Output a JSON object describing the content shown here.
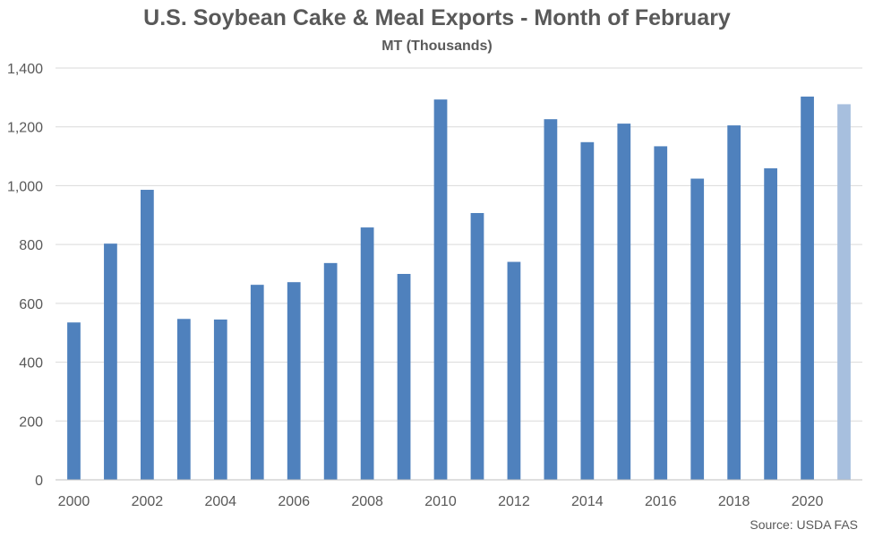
{
  "chart_data": {
    "type": "bar",
    "title": "U.S. Soybean Cake & Meal Exports - Month of February",
    "subtitle": "MT (Thousands)",
    "xlabel": "",
    "ylabel": "",
    "categories": [
      "2000",
      "2001",
      "2002",
      "2003",
      "2004",
      "2005",
      "2006",
      "2007",
      "2008",
      "2009",
      "2010",
      "2011",
      "2012",
      "2013",
      "2014",
      "2015",
      "2016",
      "2017",
      "2018",
      "2019",
      "2020",
      "2021"
    ],
    "x_tick_labels": [
      "2000",
      "2002",
      "2004",
      "2006",
      "2008",
      "2010",
      "2012",
      "2014",
      "2016",
      "2018",
      "2020"
    ],
    "y_tick_labels": [
      "0",
      "200",
      "400",
      "600",
      "800",
      "1,000",
      "1,200",
      "1,400"
    ],
    "series": [
      {
        "values": [
          535,
          803,
          986,
          547,
          545,
          663,
          672,
          737,
          858,
          700,
          1293,
          907,
          741,
          1226,
          1148,
          1211,
          1134,
          1024,
          1205,
          1059,
          1303,
          1277
        ]
      }
    ],
    "ylim": [
      0,
      1400
    ],
    "y_step": 200,
    "grid": true,
    "legend": "none",
    "source": "Source: USDA FAS",
    "colors": {
      "bar": "#4f81bd",
      "bar_highlight": "#a7bfde",
      "grid": "#d9d9d9",
      "axis": "#bfbfbf",
      "text": "#595959"
    },
    "highlighted_category": "2021"
  }
}
